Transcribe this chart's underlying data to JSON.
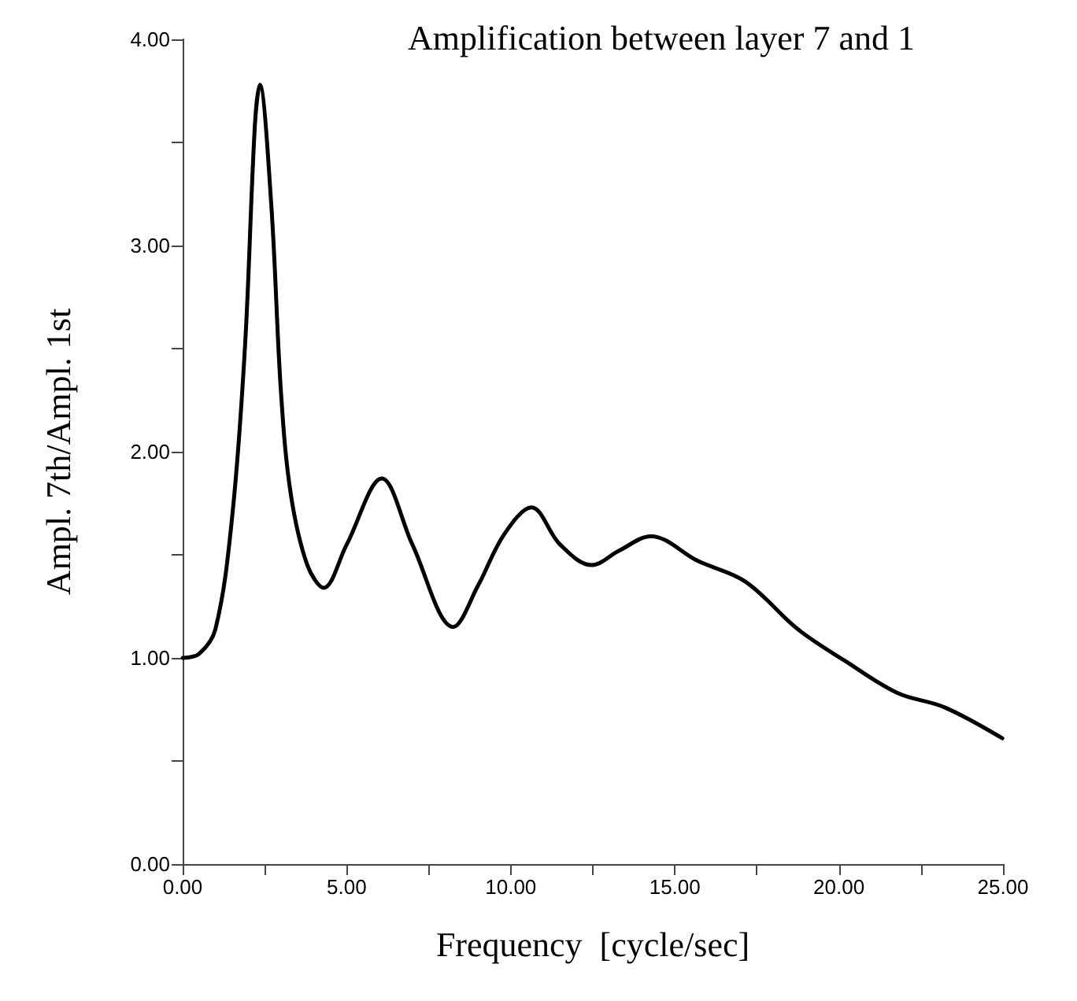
{
  "chart_data": {
    "type": "line",
    "title": "Amplification between layer 7 and 1",
    "xlabel": "Frequency  [cycle/sec]",
    "ylabel": "Ampl. 7th/Ampl. 1st",
    "x": [
      0,
      0.5,
      1.0,
      1.5,
      1.9,
      2.2,
      2.35,
      2.7,
      3.0,
      3.3,
      3.8,
      4.3,
      5.0,
      6.07,
      7.0,
      8.25,
      9.0,
      9.8,
      10.63,
      11.5,
      12.46,
      13.3,
      14.27,
      15.7,
      17.15,
      18.74,
      20.19,
      21.78,
      23.22,
      24.98
    ],
    "series": [
      {
        "color": "#000000",
        "values": [
          1.0,
          1.02,
          1.14,
          1.67,
          2.51,
          3.58,
          3.78,
          3.2,
          2.28,
          1.79,
          1.45,
          1.34,
          1.55,
          1.87,
          1.55,
          1.15,
          1.35,
          1.6,
          1.73,
          1.55,
          1.45,
          1.52,
          1.59,
          1.47,
          1.37,
          1.14,
          0.985,
          0.83,
          0.76,
          0.61
        ]
      }
    ],
    "xlim": [
      0,
      25
    ],
    "ylim": [
      0,
      4
    ],
    "xticks": [
      {
        "value": 0,
        "label": "0.00"
      },
      {
        "value": 2.5,
        "label": null
      },
      {
        "value": 5,
        "label": "5.00"
      },
      {
        "value": 7.5,
        "label": null
      },
      {
        "value": 10,
        "label": "10.00"
      },
      {
        "value": 12.5,
        "label": null
      },
      {
        "value": 15,
        "label": "15.00"
      },
      {
        "value": 17.5,
        "label": null
      },
      {
        "value": 20,
        "label": "20.00"
      },
      {
        "value": 22.5,
        "label": null
      },
      {
        "value": 25,
        "label": "25.00"
      }
    ],
    "yticks": [
      {
        "value": 0,
        "label": "0.00"
      },
      {
        "value": 0.5,
        "label": null
      },
      {
        "value": 1,
        "label": "1.00"
      },
      {
        "value": 1.5,
        "label": null
      },
      {
        "value": 2,
        "label": "2.00"
      },
      {
        "value": 2.5,
        "label": null
      },
      {
        "value": 3,
        "label": "3.00"
      },
      {
        "value": 3.5,
        "label": null
      },
      {
        "value": 4,
        "label": "4.00"
      }
    ],
    "grid": false,
    "marker": "none",
    "line_style": "solid"
  }
}
